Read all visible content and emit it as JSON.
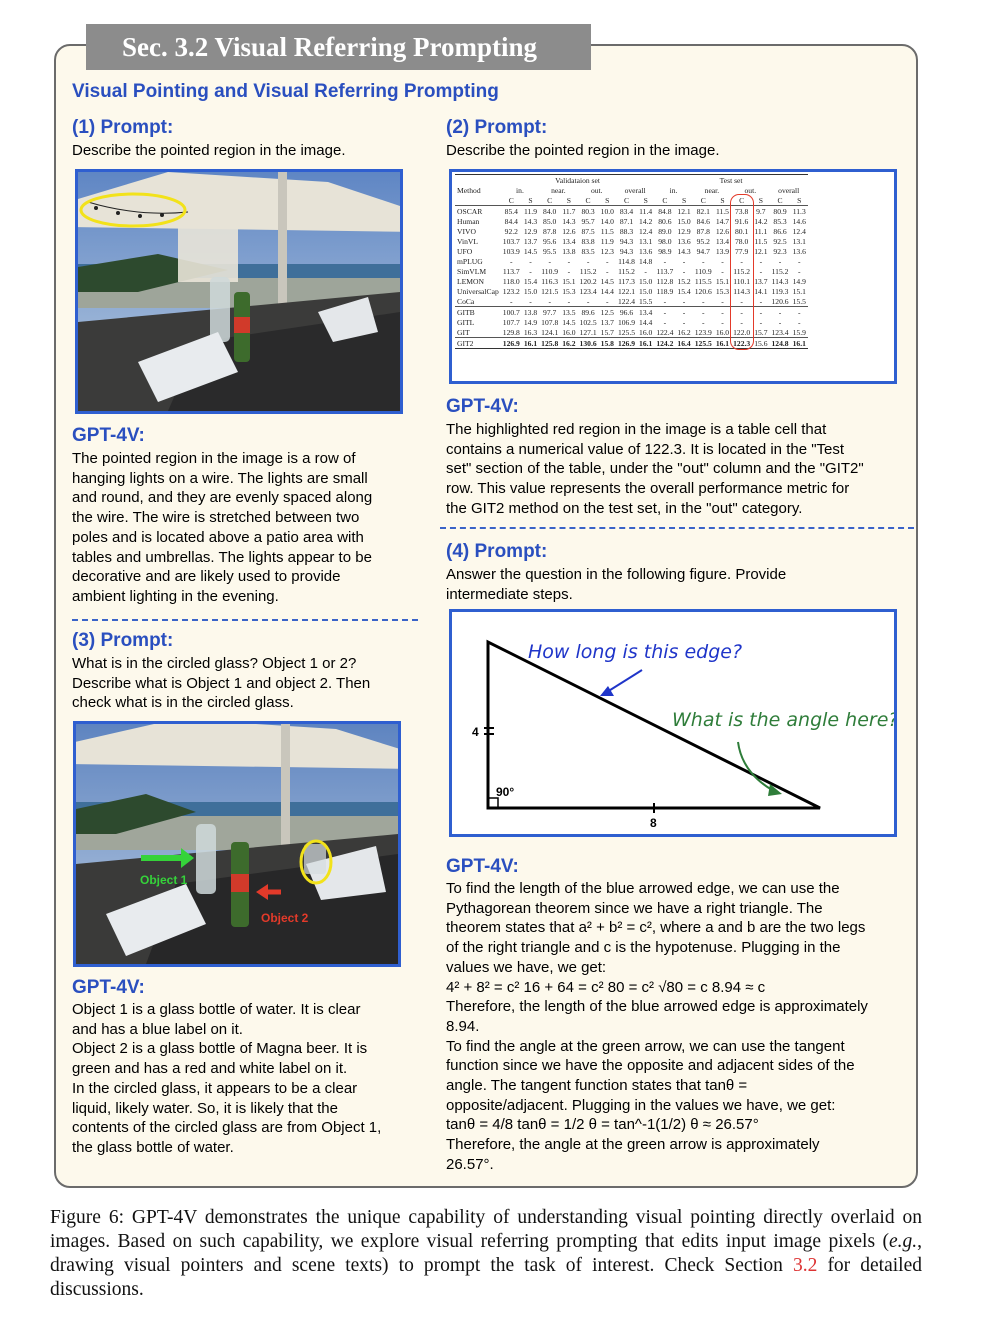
{
  "section_tab": "Sec. 3.2 Visual Referring Prompting",
  "main_heading": "Visual Pointing and Visual Referring Prompting",
  "panel1": {
    "prompt_heading": "(1) Prompt:",
    "prompt_text": "Describe the pointed region in the image.",
    "answer_heading": "GPT-4V:",
    "answer_text": "The pointed region in the image is a row of\nhanging lights on a wire. The lights are small\nand round, and they are evenly spaced along\nthe wire. The wire is stretched between two\npoles and is located above a patio area with\ntables and umbrellas. The lights appear to be\ndecorative and are likely used to provide\nambient lighting in the evening."
  },
  "panel2": {
    "prompt_heading": "(2) Prompt:",
    "prompt_text": "Describe the pointed region in the image.",
    "answer_heading": "GPT-4V:",
    "answer_text": "The highlighted red region in the image is a table cell that\ncontains a numerical value of 122.3. It is located in the \"Test\nset\" section of the table, under the \"out\" column and the \"GIT2\"\nrow. This value represents the overall performance metric for\nthe GIT2 method on the test set, in the \"out\" category."
  },
  "panel3": {
    "prompt_heading": "(3) Prompt:",
    "prompt_text": "What is in the circled glass? Object 1 or 2?\nDescribe what is Object 1 and object 2. Then\ncheck what is in the circled glass.",
    "object1_label": "Object 1",
    "object2_label": "Object 2",
    "answer_heading": "GPT-4V:",
    "answer_text": "Object 1 is a glass bottle of water. It is clear\nand has a blue label on it.\nObject 2 is a glass bottle of Magna beer. It is\ngreen and has a red and white label on it.\nIn the circled glass, it appears to be a clear\nliquid, likely water. So, it is likely that the\ncontents of the circled glass are from Object 1,\nthe glass bottle of water."
  },
  "panel4": {
    "prompt_heading": "(4) Prompt:",
    "prompt_text": "Answer the question in the following figure. Provide\nintermediate steps.",
    "fig_q1": "How long is this edge?",
    "fig_q2": "What is the angle here?",
    "fig_side_4": "4",
    "fig_side_8": "8",
    "fig_angle": "90°",
    "answer_heading": "GPT-4V:",
    "answer_text": "To find the length of the blue arrowed edge, we can use the\nPythagorean theorem since we have a right triangle. The\ntheorem states that a² + b² = c², where a and b are the two legs\nof the right triangle and c is the hypotenuse. Plugging in the\nvalues we have, we get:\n4² + 8² = c²    16 + 64 = c²    80 = c²    √80 = c    8.94 ≈ c\nTherefore, the length of the blue arrowed edge is approximately\n8.94.\nTo find the angle at the green arrow, we can use the tangent\nfunction since we have the opposite and adjacent sides of the\nangle. The tangent function states that tanθ =\nopposite/adjacent. Plugging in the values we have, we get:\ntanθ = 4/8    tanθ = 1/2    θ = tan^-1(1/2)    θ ≈ 26.57°\nTherefore, the angle at the green arrow is approximately\n26.57°."
  },
  "table": {
    "method_header": "Method",
    "val_header": "Validataion set",
    "test_header": "Test set",
    "groups": [
      "in.",
      "near.",
      "out.",
      "overall",
      "in.",
      "near.",
      "out.",
      "overall"
    ],
    "sub": [
      "C",
      "S",
      "C",
      "S",
      "C",
      "S",
      "C",
      "S",
      "C",
      "S",
      "C",
      "S",
      "C",
      "S",
      "C",
      "S"
    ],
    "rows1": [
      [
        "OSCAR",
        "85.4",
        "11.9",
        "84.0",
        "11.7",
        "80.3",
        "10.0",
        "83.4",
        "11.4",
        "84.8",
        "12.1",
        "82.1",
        "11.5",
        "73.8",
        "9.7",
        "80.9",
        "11.3"
      ],
      [
        "Human",
        "84.4",
        "14.3",
        "85.0",
        "14.3",
        "95.7",
        "14.0",
        "87.1",
        "14.2",
        "80.6",
        "15.0",
        "84.6",
        "14.7",
        "91.6",
        "14.2",
        "85.3",
        "14.6"
      ],
      [
        "VIVO",
        "92.2",
        "12.9",
        "87.8",
        "12.6",
        "87.5",
        "11.5",
        "88.3",
        "12.4",
        "89.0",
        "12.9",
        "87.8",
        "12.6",
        "80.1",
        "11.1",
        "86.6",
        "12.4"
      ],
      [
        "VinVL",
        "103.7",
        "13.7",
        "95.6",
        "13.4",
        "83.8",
        "11.9",
        "94.3",
        "13.1",
        "98.0",
        "13.6",
        "95.2",
        "13.4",
        "78.0",
        "11.5",
        "92.5",
        "13.1"
      ],
      [
        "UFO",
        "103.9",
        "14.5",
        "95.5",
        "13.8",
        "83.5",
        "12.3",
        "94.3",
        "13.6",
        "98.9",
        "14.3",
        "94.7",
        "13.9",
        "77.9",
        "12.1",
        "92.3",
        "13.6"
      ],
      [
        "mPLUG",
        "-",
        "-",
        "-",
        "-",
        "-",
        "-",
        "114.8",
        "14.8",
        "-",
        "-",
        "-",
        "-",
        "-",
        "-",
        "-",
        "-"
      ],
      [
        "SimVLM",
        "113.7",
        "-",
        "110.9",
        "-",
        "115.2",
        "-",
        "115.2",
        "-",
        "113.7",
        "-",
        "110.9",
        "-",
        "115.2",
        "-",
        "115.2",
        "-"
      ],
      [
        "LEMON",
        "118.0",
        "15.4",
        "116.3",
        "15.1",
        "120.2",
        "14.5",
        "117.3",
        "15.0",
        "112.8",
        "15.2",
        "115.5",
        "15.1",
        "110.1",
        "13.7",
        "114.3",
        "14.9"
      ],
      [
        "UniversalCap",
        "123.2",
        "15.0",
        "121.5",
        "15.3",
        "123.4",
        "14.4",
        "122.1",
        "15.0",
        "118.9",
        "15.4",
        "120.6",
        "15.3",
        "114.3",
        "14.1",
        "119.3",
        "15.1"
      ],
      [
        "CoCa",
        "-",
        "-",
        "-",
        "-",
        "-",
        "-",
        "122.4",
        "15.5",
        "-",
        "-",
        "-",
        "-",
        "-",
        "-",
        "120.6",
        "15.5"
      ]
    ],
    "rows2": [
      [
        "GITB",
        "100.7",
        "13.8",
        "97.7",
        "13.5",
        "89.6",
        "12.5",
        "96.6",
        "13.4",
        "-",
        "-",
        "-",
        "-",
        "-",
        "-",
        "-",
        "-"
      ],
      [
        "GITL",
        "107.7",
        "14.9",
        "107.8",
        "14.5",
        "102.5",
        "13.7",
        "106.9",
        "14.4",
        "-",
        "-",
        "-",
        "-",
        "-",
        "-",
        "-",
        "-"
      ],
      [
        "GIT",
        "129.8",
        "16.3",
        "124.1",
        "16.0",
        "127.1",
        "15.7",
        "125.5",
        "16.0",
        "122.4",
        "16.2",
        "123.9",
        "16.0",
        "122.0",
        "15.7",
        "123.4",
        "15.9"
      ]
    ],
    "row_git2": [
      "GIT2",
      "126.9",
      "16.1",
      "125.8",
      "16.2",
      "130.6",
      "15.8",
      "126.9",
      "16.1",
      "124.2",
      "16.4",
      "125.5",
      "16.1",
      "122.3",
      "15.6",
      "124.8",
      "16.1"
    ]
  },
  "caption": {
    "prefix": "Figure 6: GPT-4V demonstrates the unique capability of understanding visual pointing directly overlaid on images. Based on such capability, we explore visual referring prompting that edits input image pixels (",
    "eg": "e.g.",
    "middle": ", drawing visual pointers and scene texts) to prompt the task of interest. Check Section ",
    "ref": "3.2",
    "suffix": " for detailed discussions."
  },
  "colors": {
    "heading_blue": "#2a4fbf",
    "frame_bg": "#fdf9ec",
    "tab_gray": "#8c8c8c",
    "pointer_yellow": "#f2e21a",
    "pointer_red": "#e33a2a",
    "arrow_green": "#2f7d3a",
    "arrow_blue": "#1f35c9"
  }
}
